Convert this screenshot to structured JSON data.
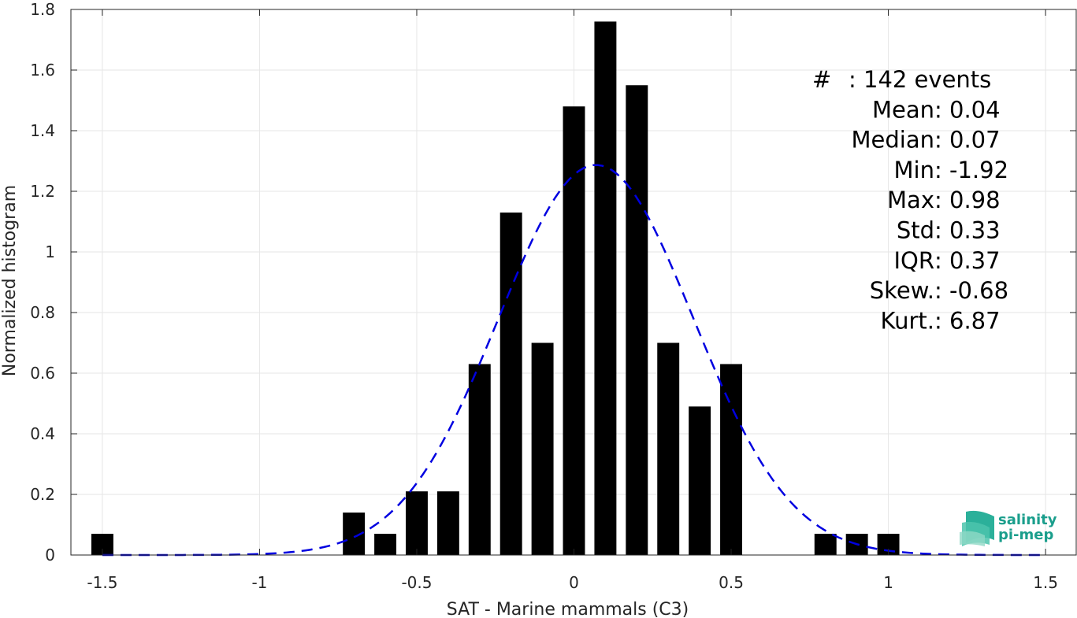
{
  "chart_data": {
    "type": "bar",
    "xlabel": "SAT - Marine mammals (C3)",
    "ylabel": "Normalized histogram",
    "xlim": [
      -1.6,
      1.6
    ],
    "ylim": [
      0,
      1.8
    ],
    "xticks": [
      -1.5,
      -1,
      -0.5,
      0,
      0.5,
      1,
      1.5
    ],
    "xtick_labels": [
      "-1.5",
      "-1",
      "-0.5",
      "0",
      "0.5",
      "1",
      "1.5"
    ],
    "yticks": [
      0,
      0.2,
      0.4,
      0.6,
      0.8,
      1,
      1.2,
      1.4,
      1.6,
      1.8
    ],
    "ytick_labels": [
      "0",
      "0.2",
      "0.4",
      "0.6",
      "0.8",
      "1",
      "1.2",
      "1.4",
      "1.6",
      "1.8"
    ],
    "grid": true,
    "bar_width": 0.07,
    "bars": [
      {
        "x": -1.5,
        "y": 0.07
      },
      {
        "x": -0.7,
        "y": 0.14
      },
      {
        "x": -0.6,
        "y": 0.07
      },
      {
        "x": -0.5,
        "y": 0.21
      },
      {
        "x": -0.4,
        "y": 0.21
      },
      {
        "x": -0.3,
        "y": 0.63
      },
      {
        "x": -0.2,
        "y": 1.13
      },
      {
        "x": -0.1,
        "y": 0.7
      },
      {
        "x": 0.0,
        "y": 1.48
      },
      {
        "x": 0.1,
        "y": 1.76
      },
      {
        "x": 0.2,
        "y": 1.55
      },
      {
        "x": 0.3,
        "y": 0.7
      },
      {
        "x": 0.4,
        "y": 0.49
      },
      {
        "x": 0.5,
        "y": 0.63
      },
      {
        "x": 0.8,
        "y": 0.07
      },
      {
        "x": 0.9,
        "y": 0.07
      },
      {
        "x": 1.0,
        "y": 0.07
      }
    ],
    "fit_curve": {
      "style": "dashed",
      "color": "#0000e0",
      "mean": 0.07,
      "std": 0.31,
      "x_range": [
        -1.5,
        1.5
      ]
    },
    "stats": [
      {
        "label": "#  ",
        "value": ": 142 events"
      },
      {
        "label": "Mean ",
        "value": ": 0.04"
      },
      {
        "label": "Median ",
        "value": ": 0.07"
      },
      {
        "label": "Min ",
        "value": ": -1.92"
      },
      {
        "label": "Max ",
        "value": ": 0.98"
      },
      {
        "label": "Std ",
        "value": ": 0.33"
      },
      {
        "label": "IQR ",
        "value": ": 0.37"
      },
      {
        "label": "Skew. ",
        "value": ": -0.68"
      },
      {
        "label": "Kurt. ",
        "value": ": 6.87"
      }
    ],
    "bar_color": "#000000"
  },
  "logo": {
    "line1": "salinity",
    "line2": "pi-mep",
    "color": "#1a9e8c"
  }
}
